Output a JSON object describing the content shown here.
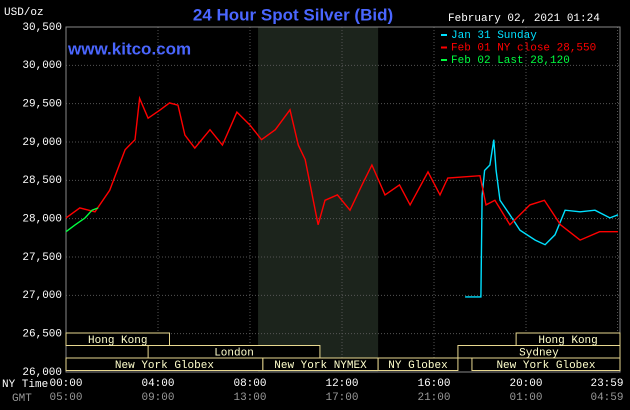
{
  "chart_data": {
    "type": "line",
    "title": "24 Hour Spot Silver (Bid)",
    "website": "www.kitco.com",
    "unit_label": "USD/oz",
    "timestamp": "February 02, 2021 01:24",
    "row_labels": [
      "NY Time",
      "GMT"
    ],
    "xlim": [
      0,
      24
    ],
    "xticks": [
      {
        "value": 0,
        "label": "00:00"
      },
      {
        "value": 4,
        "label": "04:00"
      },
      {
        "value": 8,
        "label": "08:00"
      },
      {
        "value": 12,
        "label": "12:00"
      },
      {
        "value": 16,
        "label": "16:00"
      },
      {
        "value": 20,
        "label": "20:00"
      },
      {
        "value": 23.98,
        "label": "23:59"
      }
    ],
    "x2ticks": [
      {
        "value": 0,
        "label": "05:00"
      },
      {
        "value": 4,
        "label": "09:00"
      },
      {
        "value": 8,
        "label": "13:00"
      },
      {
        "value": 12,
        "label": "17:00"
      },
      {
        "value": 16,
        "label": "21:00"
      },
      {
        "value": 20,
        "label": "01:00"
      },
      {
        "value": 23.98,
        "label": "04:59"
      }
    ],
    "ylim": [
      26000,
      30500
    ],
    "yticks": [
      {
        "value": 26000,
        "label": "26,000"
      },
      {
        "value": 26500,
        "label": "26,500"
      },
      {
        "value": 27000,
        "label": "27,000"
      },
      {
        "value": 27500,
        "label": "27,500"
      },
      {
        "value": 28000,
        "label": "28,000"
      },
      {
        "value": 28500,
        "label": "28,500"
      },
      {
        "value": 29000,
        "label": "29,000"
      },
      {
        "value": 29500,
        "label": "29,500"
      },
      {
        "value": 30000,
        "label": "30,000"
      },
      {
        "value": 30500,
        "label": "30,500"
      }
    ],
    "grid": true,
    "shaded_hours": [
      8.35,
      13.57
    ],
    "sessions": [
      {
        "label": "Hong Kong",
        "start": 0,
        "end": 4.5
      },
      {
        "label": "London",
        "start": 3.57,
        "end": 11.04
      },
      {
        "label": "New York Globex",
        "start": 0,
        "end": 8.56
      },
      {
        "label": "New York NYMEX",
        "start": 8.56,
        "end": 13.57
      },
      {
        "label": "NY Globex",
        "start": 13.57,
        "end": 17.04
      },
      {
        "label": "Sydney",
        "start": 17.04,
        "end": 24
      },
      {
        "label": "New York Globex",
        "start": 17.65,
        "end": 24
      },
      {
        "label": "Hong Kong",
        "start": 19.57,
        "end": 24
      }
    ],
    "series": [
      {
        "name": "Jan 31 Sunday",
        "color": "#00e0ff",
        "x": [
          17.35,
          18.04,
          18.09,
          18.2,
          18.43,
          18.6,
          18.7,
          18.87,
          19.3,
          19.74,
          20.4,
          20.83,
          21.26,
          21.7,
          22.35,
          23,
          23.65,
          24
        ],
        "values": [
          26980,
          26980,
          28300,
          28630,
          28700,
          29030,
          28630,
          28240,
          28050,
          27850,
          27720,
          27660,
          27790,
          28110,
          28090,
          28110,
          28010,
          28050
        ]
      },
      {
        "name": "Feb 01 NY close 28,550",
        "color": "#ff0000",
        "x": [
          0,
          0.6,
          1.26,
          1.9,
          2.57,
          3.0,
          3.2,
          3.57,
          4.1,
          4.5,
          4.87,
          5.17,
          5.6,
          6.26,
          6.8,
          7.43,
          8.0,
          8.5,
          9.1,
          9.74,
          10.1,
          10.4,
          10.96,
          11.26,
          11.8,
          12.35,
          12.87,
          13.3,
          13.87,
          14.5,
          14.96,
          15.74,
          16.26,
          16.6,
          18.0,
          18.26,
          18.65,
          19.3,
          20.17,
          20.8,
          21.5,
          22.35,
          23.2,
          24
        ],
        "values": [
          28010,
          28140,
          28090,
          28370,
          28900,
          29030,
          29570,
          29310,
          29420,
          29510,
          29480,
          29090,
          28920,
          29160,
          28960,
          29390,
          29220,
          29030,
          29160,
          29420,
          28960,
          28770,
          27920,
          28240,
          28310,
          28110,
          28440,
          28700,
          28310,
          28440,
          28180,
          28610,
          28310,
          28530,
          28560,
          28180,
          28240,
          27920,
          28180,
          28240,
          27920,
          27720,
          27830,
          27830
        ]
      },
      {
        "name": "Feb 02 Last 28,120",
        "color": "#00ff40",
        "x": [
          0,
          0.4,
          0.83,
          1.13,
          1.4
        ],
        "values": [
          27830,
          27920,
          28010,
          28110,
          28140
        ]
      }
    ]
  }
}
